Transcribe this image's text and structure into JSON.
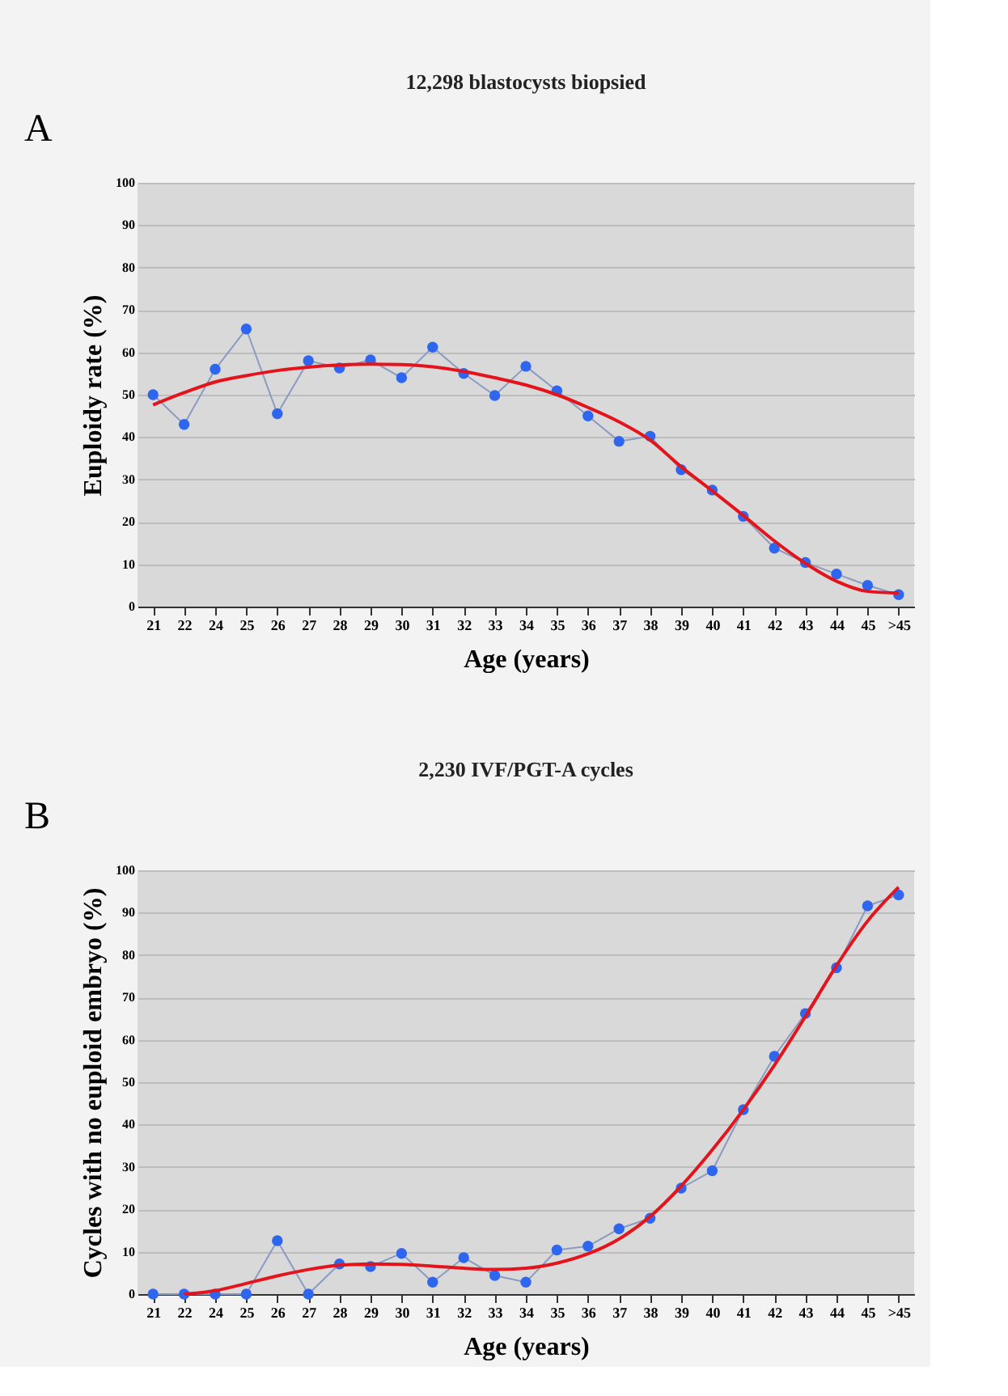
{
  "chart_data": [
    {
      "type": "line",
      "title": "12,298 blastocysts biopsied",
      "xlabel": "Age (years)",
      "ylabel": "Euploidy rate (%)",
      "annotations": [
        "A"
      ],
      "categories": [
        "21",
        "22",
        "24",
        "25",
        "26",
        "27",
        "28",
        "29",
        "30",
        "31",
        "32",
        "33",
        "34",
        "35",
        "36",
        "37",
        "38",
        "39",
        "40",
        "41",
        "42",
        "43",
        "44",
        "45",
        ">45"
      ],
      "series": [
        {
          "marker": "circle",
          "color": "#2f66f0",
          "values": [
            50,
            43,
            56,
            65.5,
            45.5,
            58,
            56.3,
            58.2,
            54,
            61.2,
            55,
            49.8,
            56.7,
            50.9,
            45,
            39,
            40.2,
            32.3,
            27.5,
            21.3,
            13.8,
            10.4,
            7.7,
            5,
            2.8
          ]
        },
        {
          "marker": "none",
          "color": "#e3141c",
          "values": [
            47.6,
            50.5,
            53,
            54.5,
            55.7,
            56.5,
            57,
            57.2,
            57.1,
            56.6,
            55.5,
            54,
            52.3,
            50,
            47,
            43.6,
            39.3,
            33,
            27.3,
            21.5,
            15.5,
            10.2,
            6,
            3.6,
            3.2
          ]
        }
      ],
      "ylim": [
        0,
        100
      ],
      "yticks": [
        0,
        10,
        20,
        30,
        40,
        50,
        60,
        70,
        80,
        90,
        100
      ],
      "grid": "y"
    },
    {
      "type": "line",
      "title": "2,230 IVF/PGT-A cycles",
      "xlabel": "Age (years)",
      "ylabel": "Cycles with no euploid embryo (%)",
      "annotations": [
        "B"
      ],
      "categories": [
        "21",
        "22",
        "24",
        "25",
        "26",
        "27",
        "28",
        "29",
        "30",
        "31",
        "32",
        "33",
        "34",
        "35",
        "36",
        "37",
        "38",
        "39",
        "40",
        "41",
        "42",
        "43",
        "44",
        "45",
        ">45"
      ],
      "series": [
        {
          "marker": "circle",
          "color": "#2f66f0",
          "values": [
            0,
            0,
            0,
            0,
            12.6,
            0,
            7.1,
            6.5,
            9.6,
            2.8,
            8.6,
            4.4,
            2.8,
            10.4,
            11.3,
            15.4,
            17.9,
            25,
            29.1,
            43.5,
            56.1,
            66.2,
            77,
            91.6,
            94.2
          ]
        },
        {
          "marker": "none",
          "color": "#e3141c",
          "values": [
            null,
            0,
            0.8,
            2.5,
            4.3,
            5.8,
            6.8,
            7.1,
            7,
            6.6,
            6.1,
            5.8,
            6.1,
            7.3,
            9.5,
            13,
            18.3,
            25.5,
            34,
            43.5,
            54,
            65.5,
            77.5,
            88,
            96
          ]
        }
      ],
      "ylim": [
        0,
        100
      ],
      "yticks": [
        0,
        10,
        20,
        30,
        40,
        50,
        60,
        70,
        80,
        90,
        100
      ],
      "grid": "y"
    }
  ]
}
